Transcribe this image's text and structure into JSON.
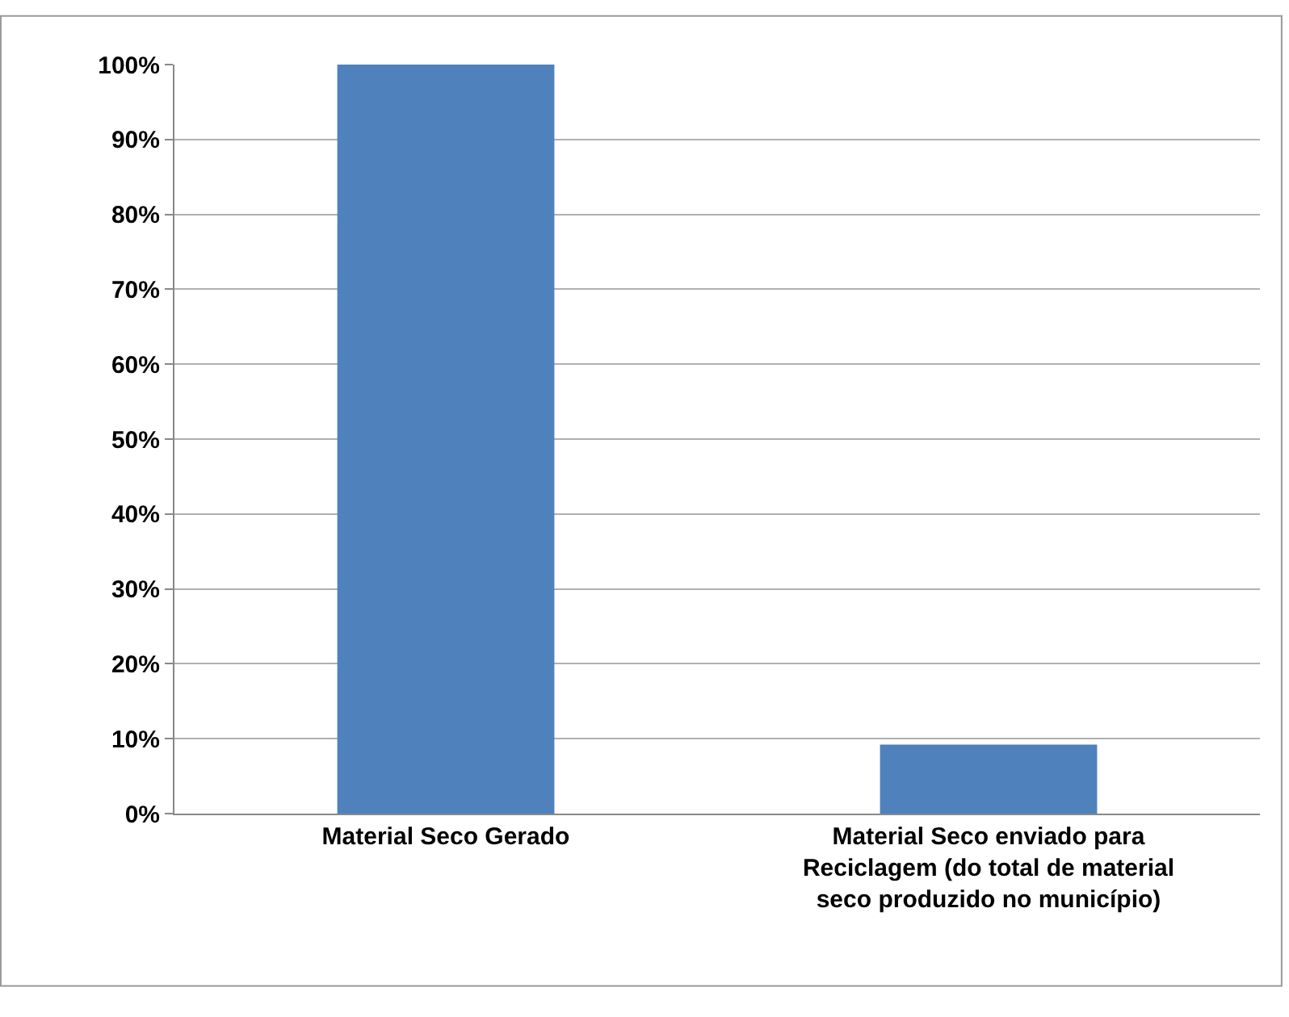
{
  "chart_data": {
    "type": "bar",
    "categories": [
      "Material Seco Gerado",
      "Material Seco enviado para Reciclagem (do total de material seco produzido no município)"
    ],
    "values": [
      100,
      9.2
    ],
    "color": "#4f81bd",
    "ylim": [
      0,
      100
    ],
    "yticks": [
      {
        "value": 0,
        "label": "0%"
      },
      {
        "value": 10,
        "label": "10%"
      },
      {
        "value": 20,
        "label": "20%"
      },
      {
        "value": 30,
        "label": "30%"
      },
      {
        "value": 40,
        "label": "40%"
      },
      {
        "value": 50,
        "label": "50%"
      },
      {
        "value": 60,
        "label": "60%"
      },
      {
        "value": 70,
        "label": "70%"
      },
      {
        "value": 80,
        "label": "80%"
      },
      {
        "value": 90,
        "label": "90%"
      },
      {
        "value": 100,
        "label": "100%"
      }
    ],
    "grid": "y",
    "legend": false
  }
}
